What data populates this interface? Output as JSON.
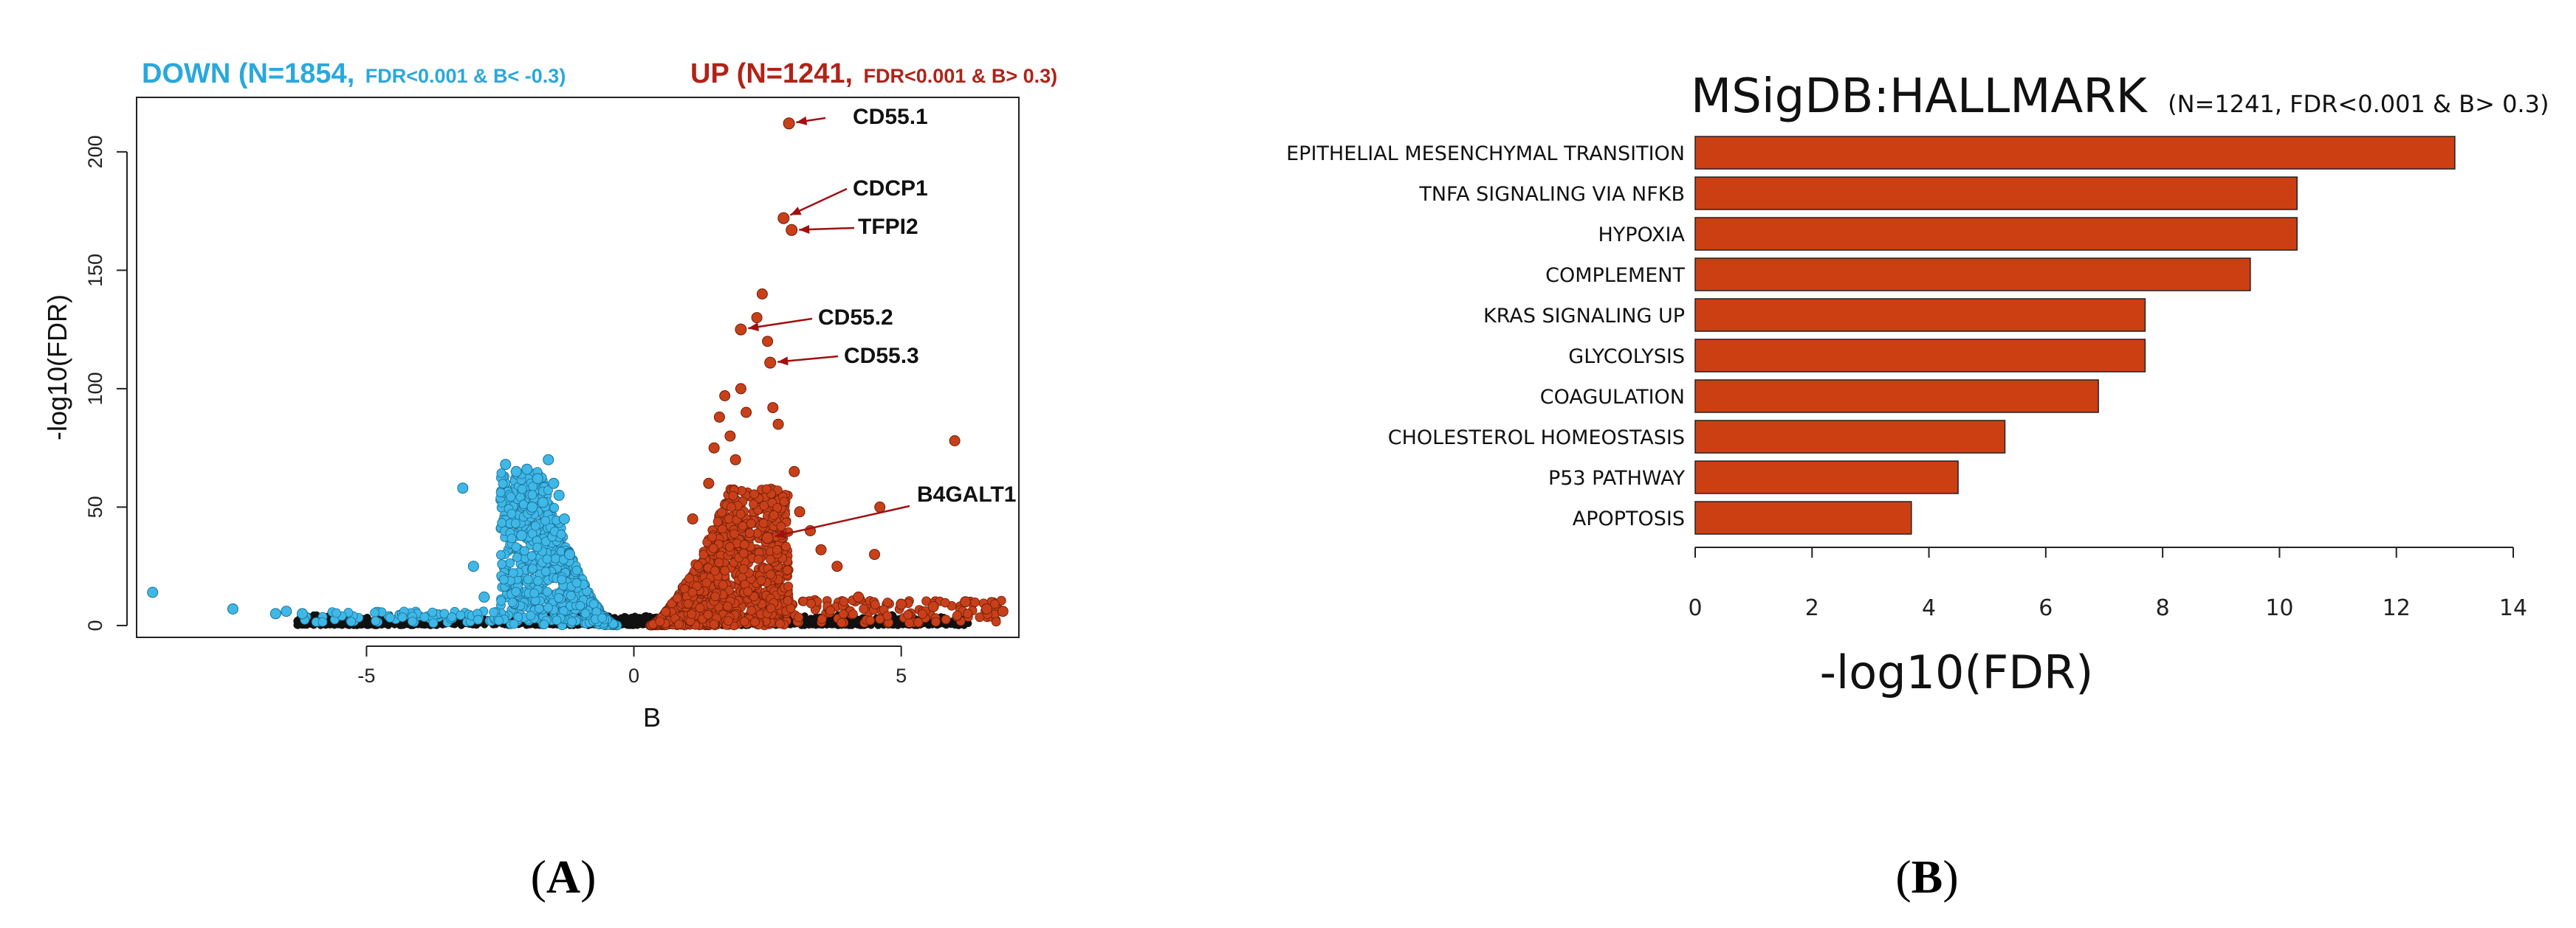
{
  "panels": [
    {
      "open": "(",
      "letter": "A",
      "close": ")"
    },
    {
      "open": "(",
      "letter": "B",
      "close": ")"
    }
  ],
  "chart_data": [
    {
      "type": "scatter",
      "xlabel": "B",
      "ylabel": "-log10(FDR)",
      "xlim": [
        -9.3,
        7.2
      ],
      "ylim": [
        -5,
        223
      ],
      "xticks": [
        -5,
        0,
        5
      ],
      "yticks": [
        0,
        50,
        100,
        150,
        200
      ],
      "grid": false,
      "annotations_top": {
        "down_main": "DOWN (N=1854,",
        "down_sub": "FDR<0.001 & B< -0.3)",
        "up_main": "UP (N=1241,",
        "up_sub": "FDR<0.001 & B> 0.3)"
      },
      "colors": {
        "down": "#3fb8e8",
        "up": "#c8401a",
        "ns": "#111111",
        "annotation_arrow": "#a01010"
      },
      "labeled_genes": [
        {
          "label": "CD55.1",
          "x": 2.9,
          "y": 212
        },
        {
          "label": "CDCP1",
          "x": 2.8,
          "y": 172
        },
        {
          "label": "TFPI2",
          "x": 2.95,
          "y": 167
        },
        {
          "label": "CD55.2",
          "x": 2.0,
          "y": 125
        },
        {
          "label": "CD55.3",
          "x": 2.55,
          "y": 111
        },
        {
          "label": "B4GALT1",
          "x": 2.5,
          "y": 37
        }
      ],
      "series": [
        {
          "name": "DOWN",
          "points": [
            [
              -9.0,
              14
            ],
            [
              -7.5,
              7
            ],
            [
              -6.7,
              5
            ],
            [
              -6.5,
              6
            ],
            [
              -6.2,
              5
            ],
            [
              -3.2,
              58
            ],
            [
              -3.0,
              25
            ],
            [
              -2.8,
              12
            ],
            [
              -2.4,
              68
            ],
            [
              -2.2,
              65
            ],
            [
              -2.0,
              66
            ],
            [
              -1.8,
              62
            ],
            [
              -1.6,
              70
            ],
            [
              -1.5,
              60
            ],
            [
              -1.4,
              55
            ],
            [
              -1.3,
              45
            ],
            [
              -1.9,
              50
            ],
            [
              -1.7,
              52
            ],
            [
              -2.1,
              38
            ],
            [
              -1.2,
              30
            ]
          ]
        },
        {
          "name": "UP",
          "points": [
            [
              1.1,
              45
            ],
            [
              1.4,
              60
            ],
            [
              1.5,
              75
            ],
            [
              1.6,
              88
            ],
            [
              1.7,
              97
            ],
            [
              1.8,
              80
            ],
            [
              1.9,
              70
            ],
            [
              2.0,
              100
            ],
            [
              2.1,
              90
            ],
            [
              2.3,
              130
            ],
            [
              2.4,
              140
            ],
            [
              2.5,
              120
            ],
            [
              2.6,
              92
            ],
            [
              2.7,
              85
            ],
            [
              3.0,
              65
            ],
            [
              3.1,
              48
            ],
            [
              3.3,
              40
            ],
            [
              3.5,
              32
            ],
            [
              3.8,
              25
            ],
            [
              4.2,
              12
            ],
            [
              4.5,
              30
            ],
            [
              4.6,
              50
            ],
            [
              5.0,
              9
            ],
            [
              5.6,
              8
            ],
            [
              6.0,
              78
            ],
            [
              6.2,
              10
            ],
            [
              6.6,
              7
            ],
            [
              6.9,
              6
            ]
          ]
        }
      ]
    },
    {
      "type": "bar",
      "orientation": "horizontal",
      "title": "MSigDB:HALLMARK",
      "subtitle": "(N=1241, FDR<0.001 & B> 0.3)",
      "xlabel": "-log10(FDR)",
      "xlim": [
        0,
        14
      ],
      "xticks": [
        0,
        2,
        4,
        6,
        8,
        10,
        12,
        14
      ],
      "categories": [
        "EPITHELIAL MESENCHYMAL TRANSITION",
        "TNFA SIGNALING VIA NFKB",
        "HYPOXIA",
        "COMPLEMENT",
        "KRAS SIGNALING UP",
        "GLYCOLYSIS",
        "COAGULATION",
        "CHOLESTEROL HOMEOSTASIS",
        "P53 PATHWAY",
        "APOPTOSIS"
      ],
      "values": [
        13.0,
        10.3,
        10.3,
        9.5,
        7.7,
        7.7,
        6.9,
        5.3,
        4.5,
        3.7
      ],
      "bar_color": "#cc3f12",
      "grid": false
    }
  ]
}
